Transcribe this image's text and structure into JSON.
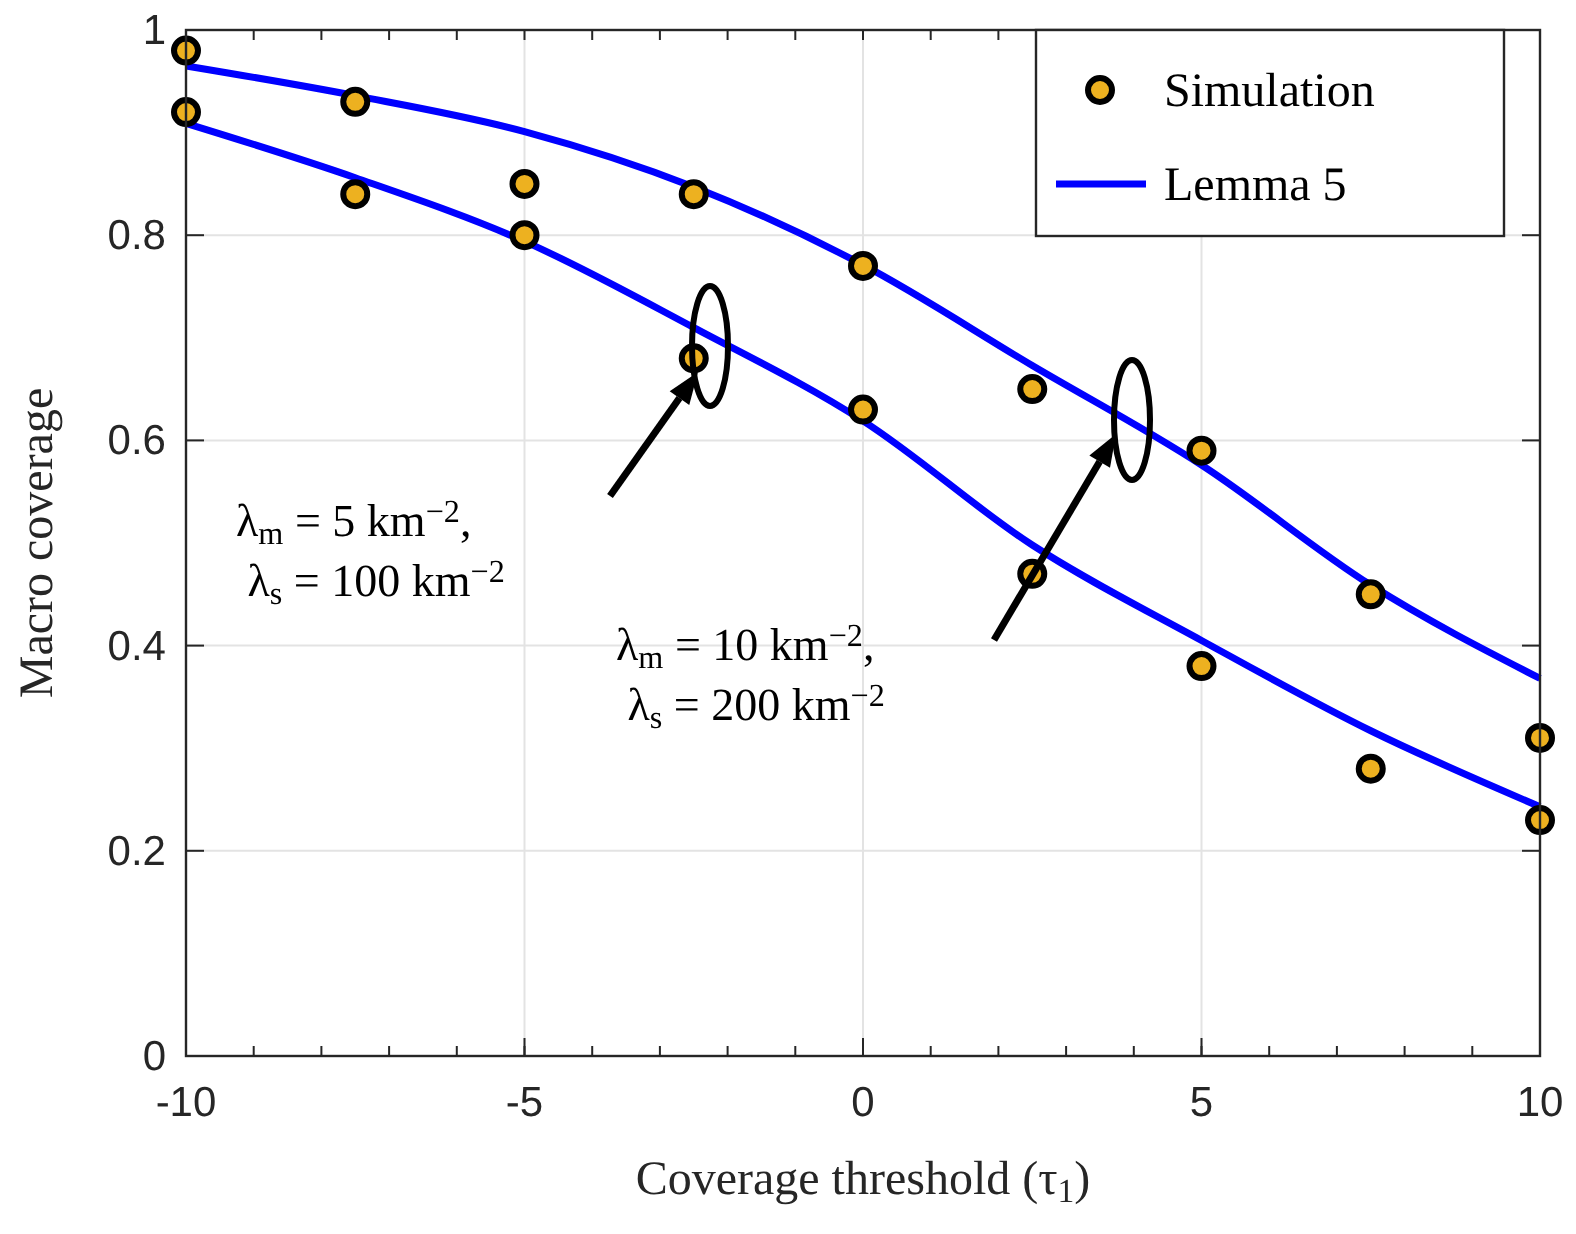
{
  "chart_data": {
    "type": "line",
    "xlabel": "Coverage threshold (τ$_{1}$)",
    "ylabel": "Macro coverage",
    "xlim": [
      -10,
      10
    ],
    "xticks": [
      -10,
      -5,
      0,
      5,
      10
    ],
    "ylim": [
      0,
      1
    ],
    "yticks": [
      0,
      0.2,
      0.4,
      0.6,
      0.8,
      1
    ],
    "grid": true,
    "legend": "top right",
    "line_style": "solid",
    "series": [
      {
        "name": "Simulation",
        "type": "scatter",
        "marker": "circle",
        "color": "#edb120",
        "x": [
          -10,
          -10,
          -7.5,
          -7.5,
          -5,
          -5,
          -2.5,
          -2.5,
          0,
          0,
          2.5,
          2.5,
          5,
          5,
          7.5,
          7.5,
          10,
          10
        ],
        "values": [
          0.98,
          0.92,
          0.93,
          0.84,
          0.85,
          0.8,
          0.84,
          0.68,
          0.77,
          0.63,
          0.65,
          0.47,
          0.59,
          0.38,
          0.45,
          0.28,
          0.31,
          0.23
        ]
      },
      {
        "name": "Lemma 5",
        "type": "line",
        "color": "#0000ff",
        "x": [
          -10,
          -7.5,
          -5,
          -2.5,
          0,
          2.5,
          5,
          7.5,
          10
        ],
        "values": [
          0.965,
          0.936,
          0.901,
          0.847,
          0.771,
          0.673,
          0.576,
          0.459,
          0.368
        ]
      },
      {
        "type": "line",
        "color": "#0000ff",
        "x": [
          -10,
          -7.5,
          -5,
          -2.5,
          0,
          2.5,
          5,
          7.5,
          10
        ],
        "values": [
          0.909,
          0.856,
          0.794,
          0.71,
          0.619,
          0.498,
          0.405,
          0.317,
          0.243
        ]
      }
    ],
    "annotations": [
      "λ$_{m}$ = 5 km$^{−2}$, λ$_{s}$ = 100 km$^{−2}$",
      "λ$_{m}$ = 10 km$^{−2}$, λ$_{s}$ = 200 km$^{−2}$"
    ]
  }
}
